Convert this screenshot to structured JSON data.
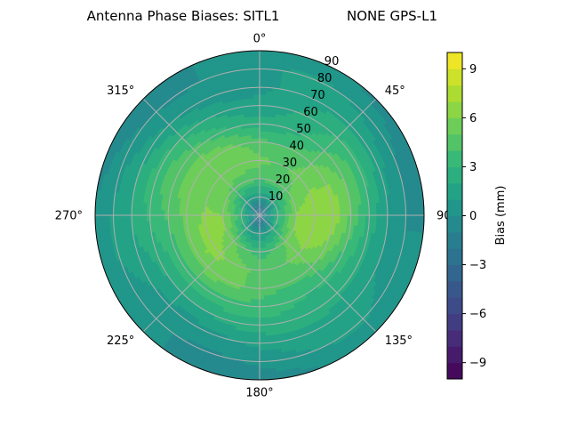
{
  "chart_data": {
    "type": "polar-contour",
    "title": "Antenna Phase Biases: SITL1",
    "subtitle": "NONE GPS-L1",
    "angular_ticks": [
      {
        "deg": 0,
        "label": "0°"
      },
      {
        "deg": 45,
        "label": "45°"
      },
      {
        "deg": 90,
        "label": "90°"
      },
      {
        "deg": 135,
        "label": "135°"
      },
      {
        "deg": 180,
        "label": "180°"
      },
      {
        "deg": 225,
        "label": "225°"
      },
      {
        "deg": 270,
        "label": "270°"
      },
      {
        "deg": 315,
        "label": "315°"
      }
    ],
    "radial_ticks": [
      {
        "value": 10,
        "label": "10"
      },
      {
        "value": 20,
        "label": "20"
      },
      {
        "value": 30,
        "label": "30"
      },
      {
        "value": 40,
        "label": "40"
      },
      {
        "value": 50,
        "label": "50"
      },
      {
        "value": 60,
        "label": "60"
      },
      {
        "value": 70,
        "label": "70"
      },
      {
        "value": 80,
        "label": "80"
      },
      {
        "value": 90,
        "label": "90"
      }
    ],
    "radial_range": [
      0,
      90
    ],
    "angular_direction": "clockwise",
    "angular_zero": "top",
    "grid": true,
    "colormap": "viridis",
    "colorbar": {
      "label": "Bias (mm)",
      "range": [
        -10,
        10
      ],
      "levels": 20,
      "ticks": [
        {
          "value": 9,
          "label": "9"
        },
        {
          "value": 6,
          "label": "6"
        },
        {
          "value": 3,
          "label": "3"
        },
        {
          "value": 0,
          "label": "0"
        },
        {
          "value": -3,
          "label": "−3"
        },
        {
          "value": -6,
          "label": "−6"
        },
        {
          "value": -9,
          "label": "−9"
        }
      ]
    },
    "field_samples": {
      "elevation_deg": [
        0,
        10,
        20,
        30,
        40,
        50,
        60,
        70,
        80,
        90
      ],
      "bias_mm_at_az_90": [
        0,
        0.5,
        1.5,
        3,
        4.5,
        6,
        6.5,
        6,
        3,
        -2
      ],
      "bias_mm_at_az_0": [
        0,
        0.5,
        1,
        2,
        3,
        4.5,
        5,
        4,
        1,
        -4
      ]
    },
    "colors": {
      "grid": "#b0b0b0",
      "frame": "#000000"
    }
  }
}
